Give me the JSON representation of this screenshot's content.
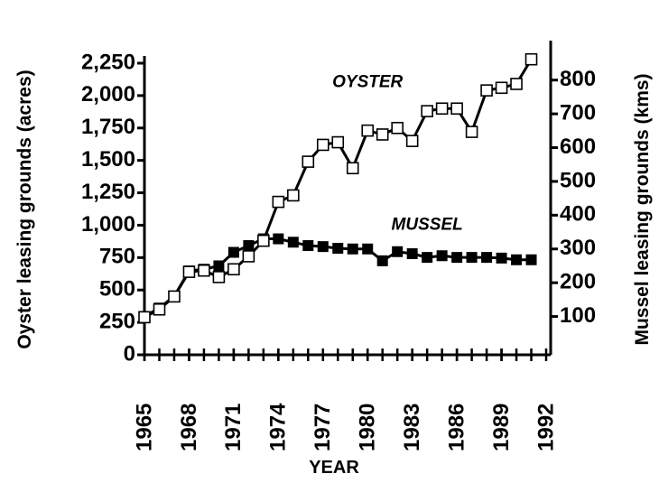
{
  "chart_data": {
    "type": "line",
    "xlabel": "YEAR",
    "ylabel": "Oyster leasing grounds (acres)",
    "y2label": "Mussel leasing grounds (kms)",
    "annotations": [
      {
        "text": "OYSTER",
        "x": 1980,
        "y": 2100
      },
      {
        "text": "MUSSEL",
        "x": 1984,
        "y": 1000
      }
    ],
    "x": [
      1965,
      1966,
      1967,
      1968,
      1969,
      1970,
      1971,
      1972,
      1973,
      1974,
      1975,
      1976,
      1977,
      1978,
      1979,
      1980,
      1981,
      1982,
      1983,
      1984,
      1985,
      1986,
      1987,
      1988,
      1989,
      1990,
      1991
    ],
    "series": [
      {
        "name": "OYSTER",
        "color": "#000000",
        "marker": "open-square",
        "axis": "y",
        "values": [
          290,
          350,
          450,
          640,
          650,
          600,
          660,
          760,
          880,
          1180,
          1230,
          1490,
          1620,
          1640,
          1440,
          1730,
          1700,
          1750,
          1650,
          1880,
          1900,
          1900,
          1720,
          2040,
          2060,
          2090,
          2280
        ]
      },
      {
        "name": "MUSSEL",
        "color": "#000000",
        "marker": "filled-square",
        "axis": "y2",
        "values": [
          100,
          125,
          160,
          235,
          240,
          250,
          290,
          310,
          330,
          330,
          320,
          310,
          307,
          302,
          300,
          300,
          265,
          292,
          286,
          275,
          280,
          275,
          275,
          275,
          273,
          268,
          268
        ]
      }
    ],
    "xlim": [
      1965,
      1992
    ],
    "xticks": [
      1965,
      1968,
      1971,
      1974,
      1977,
      1980,
      1983,
      1986,
      1989,
      1992
    ],
    "ylim": [
      0,
      2250
    ],
    "yticks": [
      0,
      250,
      500,
      750,
      {
        "value": 1000,
        "label": "1,000"
      },
      {
        "value": 1250,
        "label": "1,250"
      },
      {
        "value": 1500,
        "label": "1,500"
      },
      {
        "value": 1750,
        "label": "1,750"
      },
      {
        "value": 2000,
        "label": "2,000"
      },
      {
        "value": 2250,
        "label": "2,250"
      }
    ],
    "y2lim": [
      0,
      850
    ],
    "y2ticks": [
      100,
      200,
      300,
      400,
      500,
      600,
      700,
      800
    ]
  }
}
